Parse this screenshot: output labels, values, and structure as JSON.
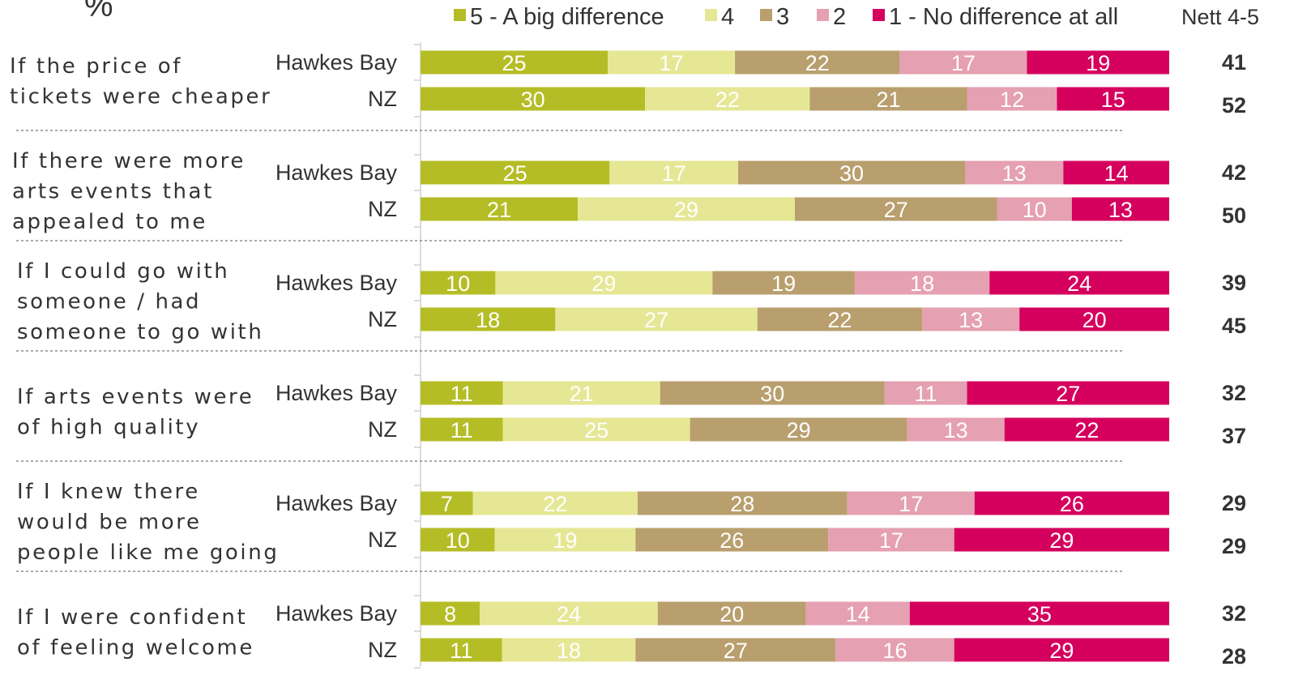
{
  "chart_data": {
    "type": "bar",
    "stacked": true,
    "orientation": "horizontal",
    "unit_label": "%",
    "nett_header": "Nett 4-5",
    "legend": [
      {
        "label": "5 - A big difference",
        "color": "#b5bd26"
      },
      {
        "label": "4",
        "color": "#e6e795"
      },
      {
        "label": "3",
        "color": "#b99f6e"
      },
      {
        "label": "2",
        "color": "#e5a0b1"
      },
      {
        "label": "1 - No difference at all",
        "color": "#d5005e"
      }
    ],
    "groups": [
      {
        "question_lines": [
          "If the price of",
          "tickets were cheaper"
        ],
        "rows": [
          {
            "label": "Hawkes Bay",
            "values": [
              25,
              17,
              22,
              17,
              19
            ],
            "nett": "41"
          },
          {
            "label": "NZ",
            "values": [
              30,
              22,
              21,
              12,
              15
            ],
            "nett": "52"
          }
        ]
      },
      {
        "question_lines": [
          "If there were more",
          "arts events that",
          "appealed to me"
        ],
        "rows": [
          {
            "label": "Hawkes Bay",
            "values": [
              25,
              17,
              30,
              13,
              14
            ],
            "nett": "42"
          },
          {
            "label": "NZ",
            "values": [
              21,
              29,
              27,
              10,
              13
            ],
            "nett": "50"
          }
        ]
      },
      {
        "question_lines": [
          "If I could go with",
          "someone / had",
          "someone to go with"
        ],
        "rows": [
          {
            "label": "Hawkes Bay",
            "values": [
              10,
              29,
              19,
              18,
              24
            ],
            "nett": "39"
          },
          {
            "label": "NZ",
            "values": [
              18,
              27,
              22,
              13,
              20
            ],
            "nett": "45"
          }
        ]
      },
      {
        "question_lines": [
          "If arts events were",
          "of high quality"
        ],
        "rows": [
          {
            "label": "Hawkes Bay",
            "values": [
              11,
              21,
              30,
              11,
              27
            ],
            "nett": "32"
          },
          {
            "label": "NZ",
            "values": [
              11,
              25,
              29,
              13,
              22
            ],
            "nett": "37"
          }
        ]
      },
      {
        "question_lines": [
          "If I knew there",
          "would be more",
          "people like me going"
        ],
        "rows": [
          {
            "label": "Hawkes Bay",
            "values": [
              7,
              22,
              28,
              17,
              26
            ],
            "nett": "29"
          },
          {
            "label": "NZ",
            "values": [
              10,
              19,
              26,
              17,
              29
            ],
            "nett": "29"
          }
        ]
      },
      {
        "question_lines": [
          "If I were confident",
          "of feeling welcome"
        ],
        "rows": [
          {
            "label": "Hawkes Bay",
            "values": [
              8,
              24,
              20,
              14,
              35
            ],
            "nett": "32"
          },
          {
            "label": "NZ",
            "values": [
              11,
              18,
              27,
              16,
              29
            ],
            "nett": "28"
          }
        ]
      }
    ]
  }
}
